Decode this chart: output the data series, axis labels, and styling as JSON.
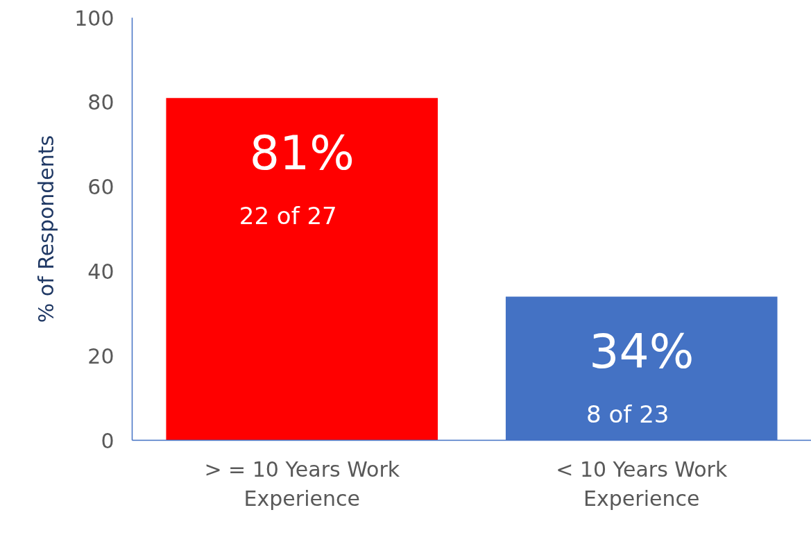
{
  "chart_data": {
    "type": "bar",
    "ylabel": "% of Respondents",
    "categories": [
      "> = 10 Years Work Experience",
      "< 10 Years Work Experience"
    ],
    "values": [
      81,
      34
    ],
    "colors": [
      "#ff0000",
      "#4472c4"
    ],
    "value_labels": [
      "81%",
      "34%"
    ],
    "annotations": [
      "22 of 27",
      "8 of 23"
    ],
    "ylim": [
      0,
      100
    ],
    "yticks": [
      0,
      20,
      40,
      60,
      80,
      100
    ],
    "grid": false
  }
}
